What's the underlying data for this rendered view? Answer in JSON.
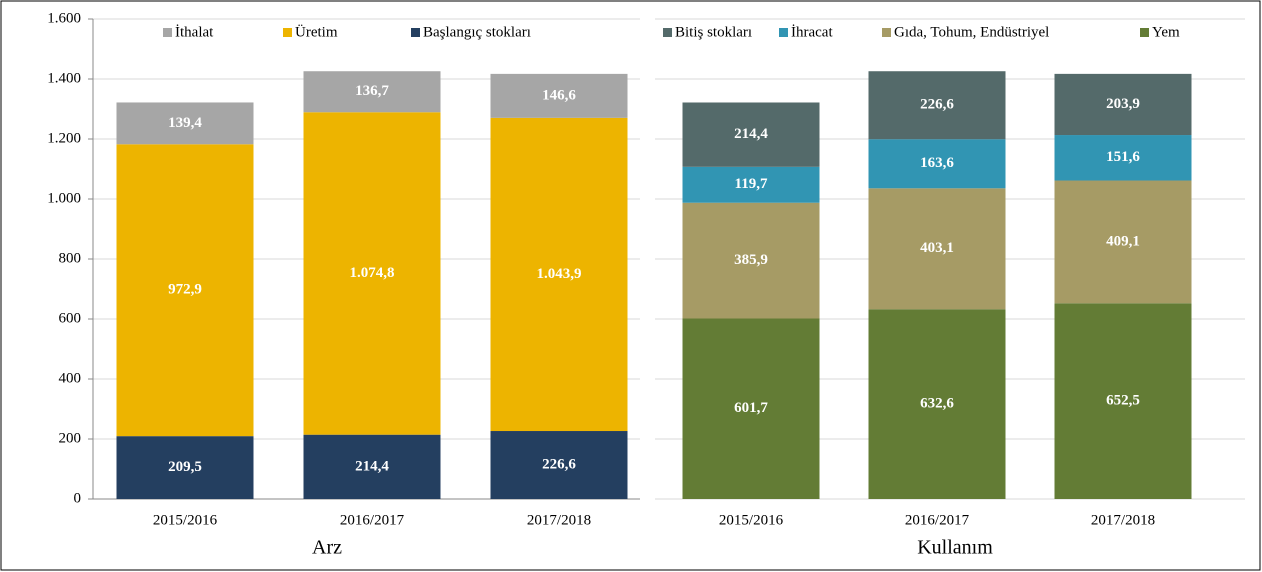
{
  "chart_data": [
    {
      "type": "bar",
      "stacked": true,
      "xlabel": "Arz",
      "categories": [
        "2015/2016",
        "2016/2017",
        "2017/2018"
      ],
      "ylim": [
        0,
        1600
      ],
      "yticks": [
        0,
        200,
        400,
        600,
        800,
        {
          "value": 1000,
          "label": "1.000"
        },
        {
          "value": 1200,
          "label": "1.200"
        },
        {
          "value": 1400,
          "label": "1.400"
        },
        {
          "value": 1600,
          "label": "1.600"
        }
      ],
      "grid": true,
      "series": [
        {
          "name": "İthalat",
          "color": "#a6a6a6",
          "values": [
            139.4,
            136.7,
            146.6
          ],
          "value_labels": [
            "139,4",
            "136,7",
            "146,6"
          ]
        },
        {
          "name": "Üretim",
          "color": "#edb400",
          "values": [
            972.9,
            1074.8,
            1043.9
          ],
          "value_labels": [
            "972,9",
            "1.074,8",
            "1.043,9"
          ]
        },
        {
          "name": "Başlangıç stokları",
          "color": "#243f60",
          "values": [
            209.5,
            214.4,
            226.6
          ],
          "value_labels": [
            "209,5",
            "214,4",
            "226,6"
          ]
        }
      ]
    },
    {
      "type": "bar",
      "stacked": true,
      "xlabel": "Kullanım",
      "categories": [
        "2015/2016",
        "2016/2017",
        "2017/2018"
      ],
      "ylim": [
        0,
        1600
      ],
      "grid": true,
      "series": [
        {
          "name": "Bitiş stokları",
          "color": "#546a6a",
          "values": [
            214.4,
            226.6,
            203.9
          ],
          "value_labels": [
            "214,4",
            "226,6",
            "203,9"
          ]
        },
        {
          "name": "İhracat",
          "color": "#3195b3",
          "values": [
            119.7,
            163.6,
            151.6
          ],
          "value_labels": [
            "119,7",
            "163,6",
            "151,6"
          ]
        },
        {
          "name": "Gıda, Tohum, Endüstriyel",
          "color": "#a69b65",
          "values": [
            385.9,
            403.1,
            409.1
          ],
          "value_labels": [
            "385,9",
            "403,1",
            "409,1"
          ]
        },
        {
          "name": "Yem",
          "color": "#637c35",
          "values": [
            601.7,
            632.6,
            652.5
          ],
          "value_labels": [
            "601,7",
            "632,6",
            "652,5"
          ]
        }
      ]
    }
  ]
}
